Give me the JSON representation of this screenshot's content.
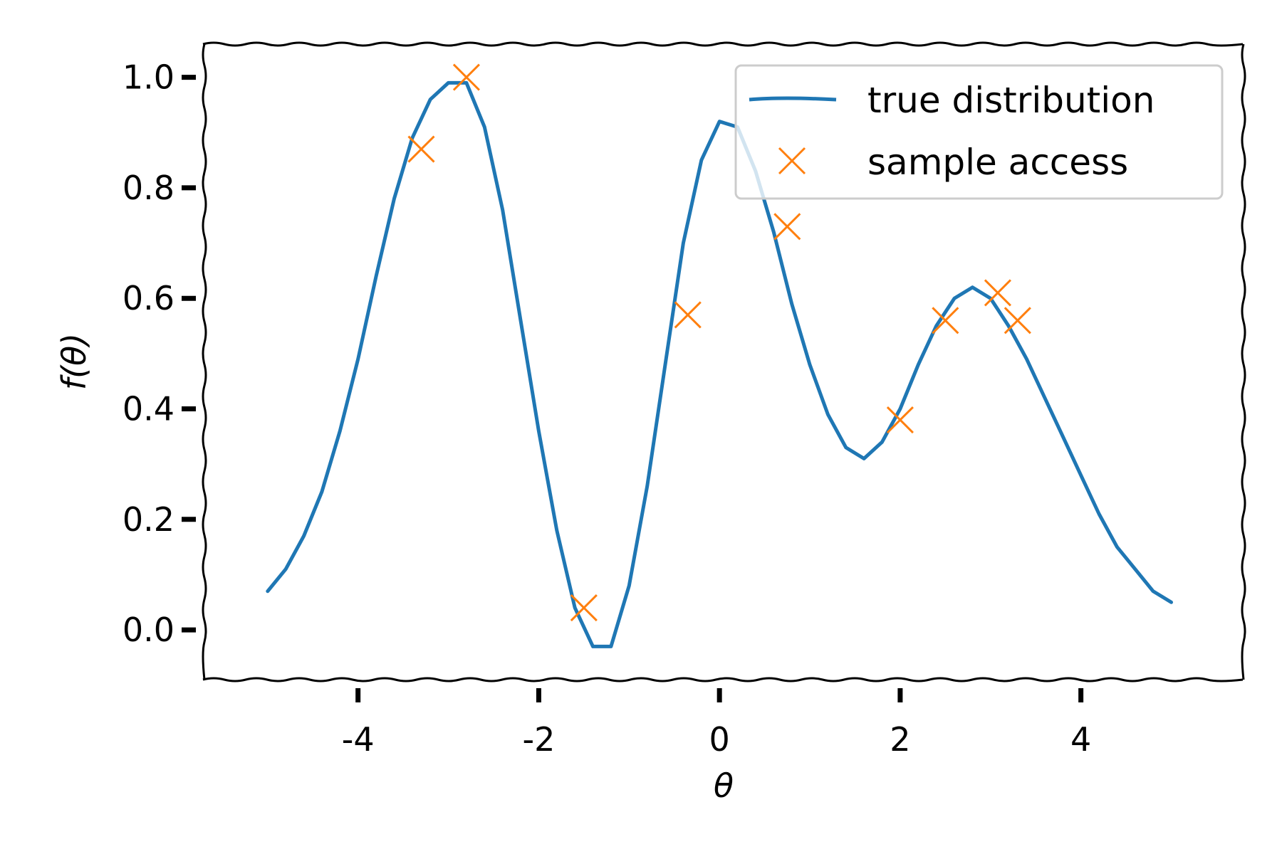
{
  "chart_data": {
    "type": "line",
    "xlabel": "θ",
    "ylabel": "f(θ)",
    "xlim": [
      -5.7,
      5.8
    ],
    "ylim": [
      -0.09,
      1.06
    ],
    "xticks": [
      -4,
      -2,
      0,
      2,
      4
    ],
    "xtick_labels": [
      "-4",
      "-2",
      "0",
      "2",
      "4"
    ],
    "yticks": [
      0.0,
      0.2,
      0.4,
      0.6,
      0.8,
      1.0
    ],
    "ytick_labels": [
      "0.0",
      "0.2",
      "0.4",
      "0.6",
      "0.8",
      "1.0"
    ],
    "grid": false,
    "legend_position": "top-right",
    "colors": {
      "line": "#1f77b4",
      "marker": "#ff7f0e"
    },
    "series": [
      {
        "name": "true distribution",
        "type": "line",
        "x": [
          -5.0,
          -4.8,
          -4.6,
          -4.4,
          -4.2,
          -4.0,
          -3.8,
          -3.6,
          -3.4,
          -3.2,
          -3.0,
          -2.8,
          -2.6,
          -2.4,
          -2.2,
          -2.0,
          -1.8,
          -1.6,
          -1.4,
          -1.2,
          -1.0,
          -0.8,
          -0.6,
          -0.4,
          -0.2,
          0.0,
          0.2,
          0.4,
          0.6,
          0.8,
          1.0,
          1.2,
          1.4,
          1.6,
          1.8,
          2.0,
          2.2,
          2.4,
          2.6,
          2.8,
          3.0,
          3.2,
          3.4,
          3.6,
          3.8,
          4.0,
          4.2,
          4.4,
          4.6,
          4.8,
          5.0
        ],
        "y": [
          0.07,
          0.11,
          0.17,
          0.25,
          0.36,
          0.49,
          0.64,
          0.78,
          0.89,
          0.96,
          0.99,
          0.99,
          0.91,
          0.76,
          0.56,
          0.36,
          0.18,
          0.04,
          -0.03,
          -0.03,
          0.08,
          0.26,
          0.48,
          0.7,
          0.85,
          0.92,
          0.91,
          0.83,
          0.72,
          0.59,
          0.48,
          0.39,
          0.33,
          0.31,
          0.34,
          0.4,
          0.48,
          0.55,
          0.6,
          0.62,
          0.6,
          0.55,
          0.49,
          0.42,
          0.35,
          0.28,
          0.21,
          0.15,
          0.11,
          0.07,
          0.05
        ]
      },
      {
        "name": "sample access",
        "type": "scatter",
        "marker": "x",
        "x": [
          -3.3,
          -2.8,
          -1.5,
          -0.35,
          0.75,
          2.0,
          2.5,
          3.08,
          3.3
        ],
        "y": [
          0.87,
          1.0,
          0.04,
          0.57,
          0.73,
          0.38,
          0.56,
          0.61,
          0.56
        ]
      }
    ]
  }
}
